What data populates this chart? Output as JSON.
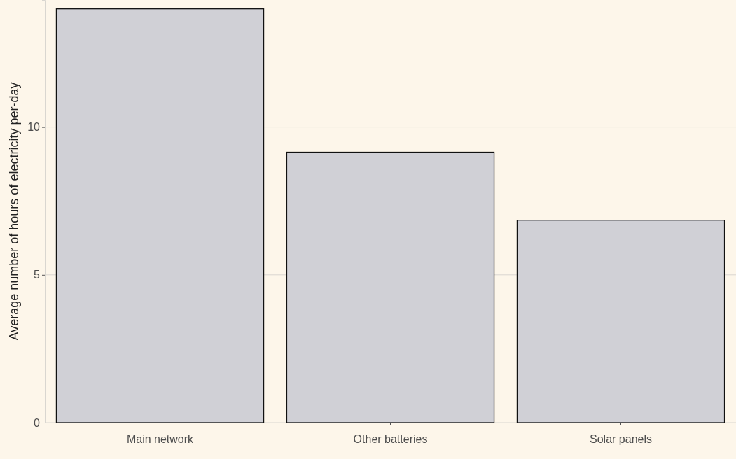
{
  "chart_data": {
    "type": "bar",
    "ylabel": "Average number of hours of electricity per-day",
    "categories": [
      "Main network",
      "Other batteries",
      "Solar panels"
    ],
    "values": [
      14.0,
      9.15,
      6.85
    ],
    "color": "#d0d0d6",
    "ylim": [
      0,
      14.3
    ],
    "yticks": [
      0,
      5,
      10
    ],
    "grid": "y"
  }
}
